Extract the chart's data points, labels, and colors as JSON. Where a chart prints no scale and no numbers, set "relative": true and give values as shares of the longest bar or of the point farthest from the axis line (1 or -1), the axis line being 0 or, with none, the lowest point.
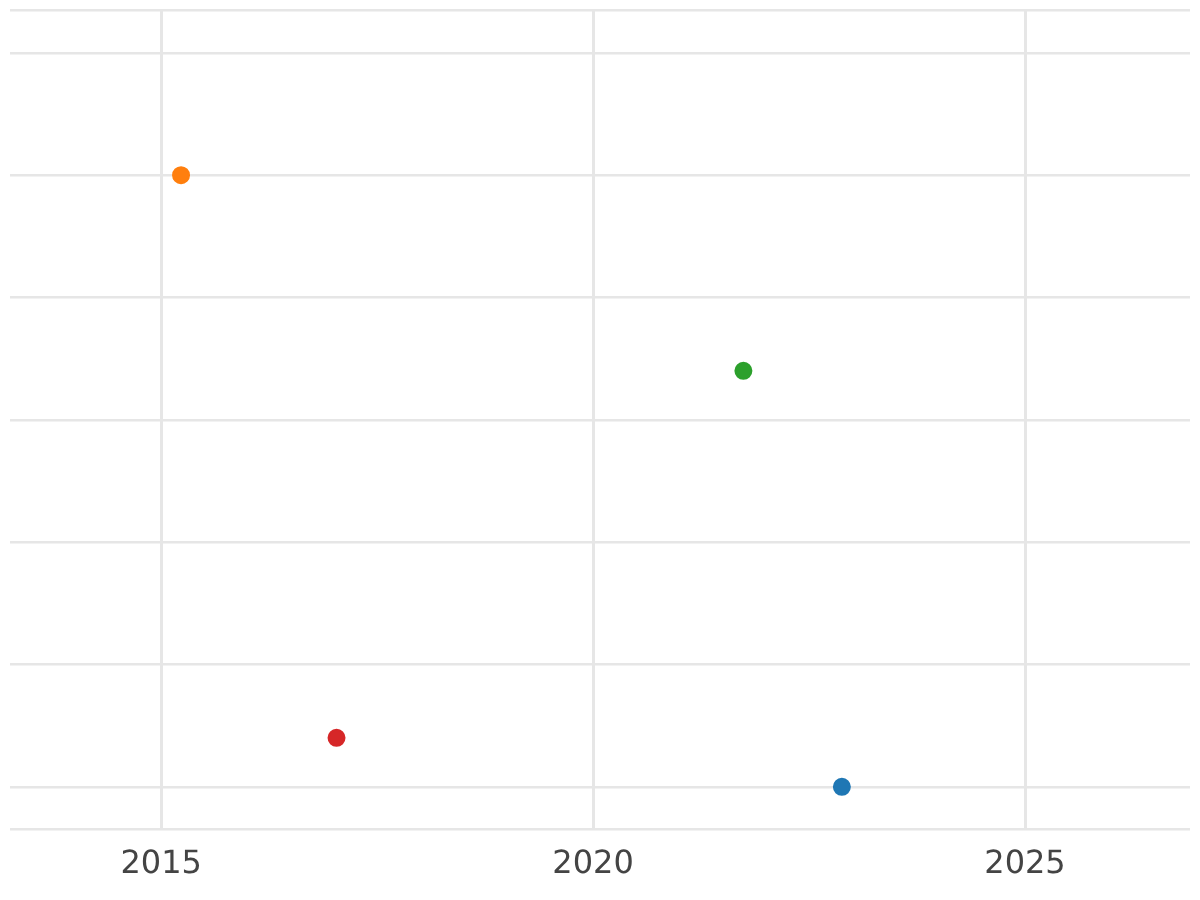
{
  "chart_data": {
    "type": "scatter",
    "relative": true,
    "grid": true,
    "marker": "circle",
    "legend": false,
    "xlim": [
      2013.25,
      2026.91
    ],
    "xticks": [
      2015,
      2020,
      2025
    ],
    "x": [
      2015.23,
      2021.74,
      2017.03,
      2022.88
    ],
    "values": [
      1,
      0.68,
      0.08,
      0
    ],
    "colors": [
      "#ff7f0e",
      "#2ca02c",
      "#d62728",
      "#1f77b4"
    ]
  }
}
